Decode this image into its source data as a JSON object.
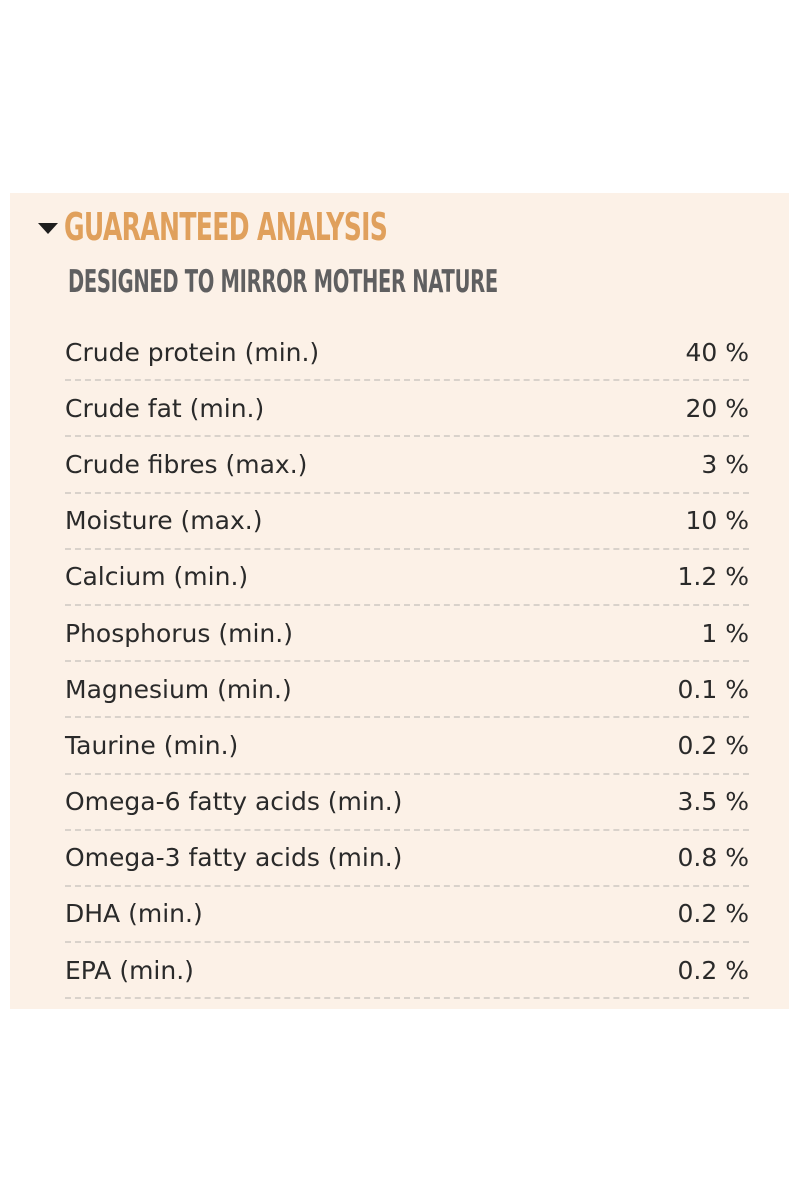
{
  "header": {
    "title": "GUARANTEED ANALYSIS",
    "subtitle": "DESIGNED TO MIRROR MOTHER NATURE"
  },
  "rows": [
    {
      "label": "Crude protein (min.)",
      "value": "40 %"
    },
    {
      "label": "Crude fat (min.)",
      "value": "20 %"
    },
    {
      "label": "Crude fibres (max.)",
      "value": "3 %"
    },
    {
      "label": "Moisture (max.)",
      "value": "10 %"
    },
    {
      "label": "Calcium (min.)",
      "value": "1.2 %"
    },
    {
      "label": "Phosphorus (min.)",
      "value": "1 %"
    },
    {
      "label": "Magnesium (min.)",
      "value": "0.1 %"
    },
    {
      "label": "Taurine (min.)",
      "value": "0.2 %"
    },
    {
      "label": "Omega-6 fatty acids (min.)",
      "value": "3.5 %"
    },
    {
      "label": "Omega-3 fatty acids (min.)",
      "value": "0.8 %"
    },
    {
      "label": "DHA (min.)",
      "value": "0.2 %"
    },
    {
      "label": "EPA (min.)",
      "value": "0.2 %"
    }
  ],
  "colors": {
    "panel_background": "#fcf1e7",
    "title": "#e0a05c",
    "subtitle": "#5f5f60",
    "text": "#2a2a2a"
  }
}
